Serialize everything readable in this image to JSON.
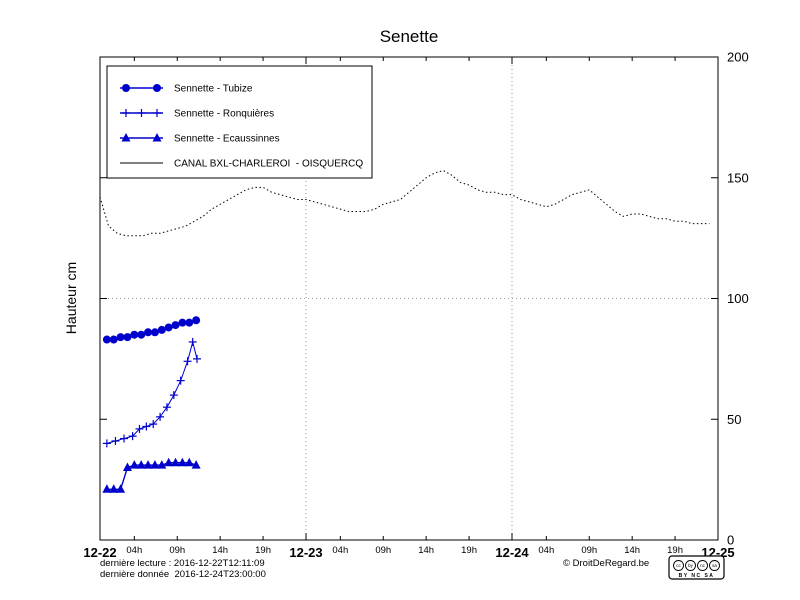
{
  "title": "Senette",
  "ylabel": "Hauteur cm",
  "footer": {
    "line1": "dernière lecture : 2016-12-22T12:11:09",
    "line2": "dernière donnée  2016-12-24T23:00:00",
    "copyright": "© DroitDeRegard.be",
    "cc_icons": [
      "cc",
      "by",
      "nc",
      "sa"
    ],
    "cc_text": "BY NC SA"
  },
  "chart_data": {
    "type": "line",
    "title": "Senette",
    "xlabel": "",
    "ylabel": "Hauteur cm",
    "x_unit": "hours since 2016-12-22 00:00",
    "xlim": [
      0,
      72
    ],
    "ylim": [
      0,
      200
    ],
    "y_ticks": [
      0,
      50,
      100,
      150,
      200
    ],
    "x_major": [
      {
        "hour": 0,
        "label": "12-22"
      },
      {
        "hour": 24,
        "label": "12-23"
      },
      {
        "hour": 48,
        "label": "12-24"
      },
      {
        "hour": 72,
        "label": "12-25"
      }
    ],
    "x_minor_offsets": [
      {
        "offset": 4,
        "label": "04h"
      },
      {
        "offset": 9,
        "label": "09h"
      },
      {
        "offset": 14,
        "label": "14h"
      },
      {
        "offset": 19,
        "label": "19h"
      }
    ],
    "grid": {
      "h_values": [
        100
      ],
      "v_hours": [
        24,
        48
      ]
    },
    "legend_position": "top-left",
    "series": [
      {
        "name": "Sennette - Tubize",
        "color": "#0000cd",
        "marker": "circle",
        "line": "solid",
        "hours": [
          0.8,
          1.6,
          2.4,
          3.2,
          4.0,
          4.8,
          5.6,
          6.4,
          7.2,
          8.0,
          8.8,
          9.6,
          10.4,
          11.2
        ],
        "values": [
          83,
          83,
          84,
          84,
          85,
          85,
          86,
          86,
          87,
          88,
          89,
          90,
          90,
          91
        ]
      },
      {
        "name": "Sennette - Ronquières",
        "color": "#0000cd",
        "marker": "plus",
        "line": "solid",
        "hours": [
          0.8,
          1.8,
          2.8,
          3.8,
          4.6,
          5.4,
          6.2,
          7.0,
          7.8,
          8.6,
          9.4,
          10.2,
          10.8,
          11.3
        ],
        "values": [
          40,
          41,
          42,
          43,
          46,
          47,
          48,
          51,
          55,
          60,
          66,
          74,
          82,
          75
        ]
      },
      {
        "name": "Sennette - Ecaussinnes",
        "color": "#0000cd",
        "marker": "triangle",
        "line": "solid",
        "hours": [
          0.8,
          1.6,
          2.4,
          3.2,
          4.0,
          4.8,
          5.6,
          6.4,
          7.2,
          8.0,
          8.8,
          9.6,
          10.4,
          11.2
        ],
        "values": [
          21,
          21,
          21,
          30,
          31,
          31,
          31,
          31,
          31,
          32,
          32,
          32,
          32,
          31
        ]
      },
      {
        "name": "CANAL BXL-CHARLEROI  - OISQUERCQ",
        "color": "#000000",
        "marker": "none",
        "line": "dotted",
        "hours": [
          0,
          1,
          2,
          3,
          4,
          5,
          6,
          7,
          8,
          9,
          10,
          11,
          12,
          13,
          14,
          15,
          16,
          17,
          18,
          19,
          20,
          21,
          22,
          23,
          24,
          25,
          26,
          27,
          28,
          29,
          30,
          31,
          32,
          33,
          34,
          35,
          36,
          37,
          38,
          39,
          40,
          41,
          42,
          43,
          44,
          45,
          46,
          47,
          48,
          49,
          50,
          51,
          52,
          53,
          54,
          55,
          56,
          57,
          58,
          59,
          60,
          61,
          62,
          63,
          64,
          65,
          66,
          67,
          68,
          69,
          70,
          71
        ],
        "values": [
          142,
          130,
          127,
          126,
          126,
          126,
          127,
          127,
          128,
          129,
          130,
          132,
          134,
          137,
          139,
          141,
          143,
          145,
          146,
          146,
          144,
          143,
          142,
          141,
          141,
          140,
          139,
          138,
          137,
          136,
          136,
          136,
          137,
          139,
          140,
          141,
          144,
          147,
          150,
          152,
          153,
          151,
          148,
          147,
          145,
          144,
          144,
          143,
          143,
          141,
          140,
          139,
          138,
          139,
          141,
          143,
          144,
          145,
          142,
          139,
          136,
          134,
          135,
          135,
          134,
          133,
          133,
          132,
          132,
          131,
          131,
          131
        ]
      }
    ]
  }
}
